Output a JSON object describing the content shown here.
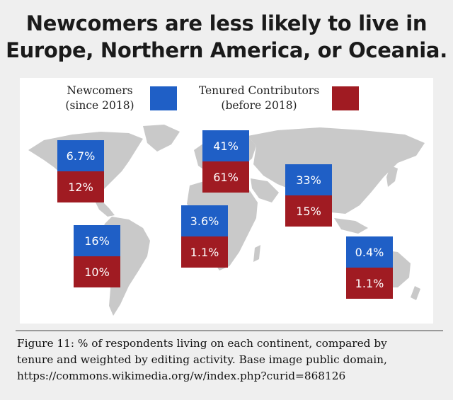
{
  "title_line1": "Newcomers are less likely to live in",
  "title_line2": "Europe, Northern America, or Oceania.",
  "legend": {
    "newcomers_line1": "Newcomers",
    "newcomers_line2": "(since 2018)",
    "tenured_line1": "Tenured Contributors",
    "tenured_line2": "(before 2018)",
    "newcomers_color": "#1f5fc6",
    "tenured_color": "#a01b22"
  },
  "caption_line1": "Figure 11: % of respondents living on each continent, compared by",
  "caption_line2": "tenure and weighted by editing activity. Base image public domain,",
  "caption_line3": "https://commons.wikimedia.org/w/index.php?curid=868126",
  "chart_data": {
    "type": "table",
    "categories": [
      "Northern America",
      "Europe",
      "Asia",
      "South America",
      "Africa",
      "Oceania"
    ],
    "series": [
      {
        "name": "Newcomers (since 2018)",
        "values": [
          6.7,
          41,
          33,
          16,
          3.6,
          0.4
        ]
      },
      {
        "name": "Tenured Contributors (before 2018)",
        "values": [
          12,
          61,
          15,
          10,
          1.1,
          1.1
        ]
      }
    ],
    "labels": {
      "newcomers": [
        "6.7%",
        "41%",
        "33%",
        "16%",
        "3.6%",
        "0.4%"
      ],
      "tenured": [
        "12%",
        "61%",
        "15%",
        "10%",
        "1.1%",
        "1.1%"
      ]
    }
  }
}
